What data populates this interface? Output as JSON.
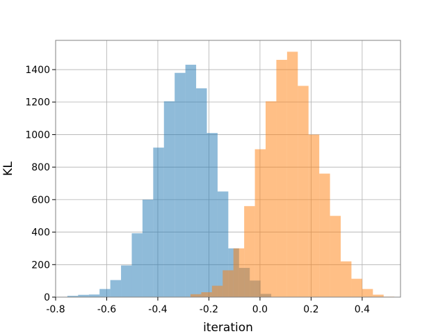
{
  "chart_data": {
    "type": "histogram",
    "xlabel": "iteration",
    "ylabel": "KL",
    "xlim": [
      -0.8,
      0.55
    ],
    "ylim": [
      0,
      1580
    ],
    "x_ticks": [
      "-0.8",
      "-0.6",
      "-0.4",
      "-0.2",
      "0.0",
      "0.2",
      "0.4"
    ],
    "x_tick_values": [
      -0.8,
      -0.6,
      -0.4,
      -0.2,
      0.0,
      0.2,
      0.4
    ],
    "y_ticks": [
      "0",
      "200",
      "400",
      "600",
      "800",
      "1000",
      "1200",
      "1400"
    ],
    "y_tick_values": [
      0,
      200,
      400,
      600,
      800,
      1000,
      1200,
      1400
    ],
    "grid": true,
    "series": [
      {
        "color": "#1f77b4",
        "alpha": 0.5,
        "bin_edges": [
          -0.754,
          -0.712,
          -0.67,
          -0.628,
          -0.586,
          -0.544,
          -0.502,
          -0.46,
          -0.418,
          -0.376,
          -0.334,
          -0.292,
          -0.25,
          -0.208,
          -0.166,
          -0.124,
          -0.082,
          -0.04,
          0.002,
          0.044
        ],
        "counts": [
          8,
          14,
          16,
          50,
          105,
          195,
          393,
          600,
          920,
          1205,
          1380,
          1430,
          1285,
          1010,
          650,
          300,
          180,
          102,
          20
        ]
      },
      {
        "color": "#ff7f0e",
        "alpha": 0.5,
        "bin_edges": [
          -0.272,
          -0.23,
          -0.188,
          -0.146,
          -0.104,
          -0.062,
          -0.02,
          0.022,
          0.064,
          0.106,
          0.148,
          0.19,
          0.232,
          0.274,
          0.316,
          0.358,
          0.4,
          0.442,
          0.484,
          0.526
        ],
        "counts": [
          18,
          30,
          70,
          165,
          300,
          560,
          910,
          1205,
          1460,
          1510,
          1300,
          1000,
          760,
          500,
          220,
          113,
          50,
          15,
          3
        ]
      }
    ]
  }
}
